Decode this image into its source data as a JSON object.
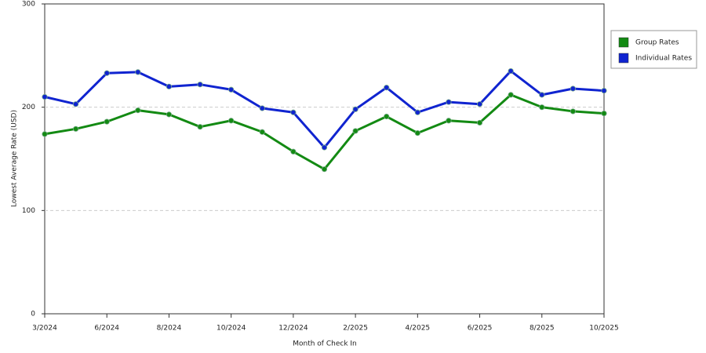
{
  "chart_data": {
    "type": "line",
    "x_label": "Month of Check In",
    "y_label": "Lowest Average Rate (USD)",
    "categories": [
      "3/2024",
      null,
      "6/2024",
      null,
      "8/2024",
      null,
      "10/2024",
      null,
      "12/2024",
      null,
      "2/2025",
      null,
      "4/2025",
      null,
      "6/2025",
      null,
      "8/2025",
      null,
      "10/2025"
    ],
    "series": [
      {
        "name": "Group Rates",
        "color": "#138a13",
        "values": [
          174,
          179,
          186,
          197,
          193,
          181,
          187,
          176,
          157,
          140,
          177,
          191,
          175,
          187,
          185,
          212,
          200,
          196,
          194
        ]
      },
      {
        "name": "Individual Rates",
        "color": "#1024d0",
        "values": [
          210,
          203,
          233,
          234,
          220,
          222,
          217,
          199,
          195,
          161,
          198,
          219,
          195,
          205,
          203,
          235,
          212,
          218,
          216
        ]
      }
    ],
    "ylim": [
      0,
      300
    ],
    "yticks": [
      0,
      100,
      200,
      300
    ],
    "grid": true
  }
}
